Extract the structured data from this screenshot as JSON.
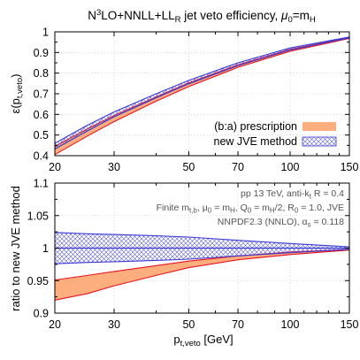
{
  "chart_data": {
    "type": "area",
    "title": {
      "pre": "N",
      "sup": "3",
      "mid": "LO+NNLL+LL",
      "sub": "R",
      "post": " jet veto efficiency, ",
      "mu": "μ",
      "mu_sub": "0",
      "eq": "=m",
      "eq_sub": "H"
    },
    "xlabel": {
      "base": "p",
      "sub": "t,veto",
      "unit": " [GeV]"
    },
    "x_scale": "log",
    "xlim": [
      20,
      150
    ],
    "x_ticks": [
      20,
      30,
      50,
      70,
      100,
      150
    ],
    "top_panel": {
      "ylabel": {
        "base": "ε(p",
        "sub": "t,veto",
        "close": ")"
      },
      "ylim": [
        0.4,
        1.0
      ],
      "y_ticks": [
        "0.4",
        "0.5",
        "0.6",
        "0.7",
        "0.8",
        "0.9",
        "1"
      ],
      "series": [
        {
          "name": "(b:a) prescription",
          "style": "solid-orange",
          "x": [
            20,
            25,
            30,
            40,
            50,
            70,
            100,
            150
          ],
          "upper": [
            0.445,
            0.53,
            0.595,
            0.685,
            0.753,
            0.84,
            0.915,
            0.972
          ],
          "lower": [
            0.405,
            0.495,
            0.565,
            0.664,
            0.735,
            0.828,
            0.906,
            0.968
          ]
        },
        {
          "name": "new JVE method",
          "style": "hatched-blue",
          "x": [
            20,
            25,
            30,
            40,
            50,
            70,
            100,
            150
          ],
          "upper": [
            0.46,
            0.548,
            0.612,
            0.7,
            0.765,
            0.85,
            0.922,
            0.975
          ],
          "lower": [
            0.432,
            0.52,
            0.588,
            0.68,
            0.748,
            0.836,
            0.912,
            0.971
          ]
        }
      ],
      "legend_position": "lower-right"
    },
    "bottom_panel": {
      "ylabel": "ratio to new JVE method",
      "ylim": [
        0.9,
        1.1
      ],
      "y_ticks": [
        "0.9",
        "0.95",
        "1",
        "1.05",
        "1.1"
      ],
      "series": [
        {
          "name": "(b:a) prescription",
          "style": "solid-orange",
          "x": [
            20,
            25,
            30,
            40,
            50,
            70,
            100,
            150
          ],
          "upper": [
            0.951,
            0.958,
            0.964,
            0.973,
            0.98,
            0.988,
            0.994,
            0.998
          ],
          "lower": [
            0.92,
            0.93,
            0.942,
            0.958,
            0.97,
            0.982,
            0.99,
            0.997
          ]
        },
        {
          "name": "new JVE method",
          "style": "hatched-blue",
          "x": [
            20,
            25,
            30,
            40,
            50,
            70,
            100,
            150
          ],
          "upper": [
            1.024,
            1.022,
            1.021,
            1.019,
            1.017,
            1.012,
            1.007,
            1.002
          ],
          "lower": [
            0.976,
            0.978,
            0.979,
            0.981,
            0.983,
            0.988,
            0.993,
            0.998
          ]
        }
      ],
      "reference_line": 1.0
    },
    "annotations": [
      {
        "parts": [
          {
            "t": "pp 13 TeV, anti-k"
          },
          {
            "t": "t",
            "sub": true
          },
          {
            "t": " R = 0.4"
          }
        ]
      },
      {
        "parts": [
          {
            "t": "Finite m"
          },
          {
            "t": "t,b",
            "sub": true
          },
          {
            "t": ", μ"
          },
          {
            "t": "0",
            "sub": true
          },
          {
            "t": " = m"
          },
          {
            "t": "H",
            "sub": true
          },
          {
            "t": ", Q"
          },
          {
            "t": "0",
            "sub": true
          },
          {
            "t": " = m"
          },
          {
            "t": "H",
            "sub": true
          },
          {
            "t": "/2, R"
          },
          {
            "t": "0",
            "sub": true
          },
          {
            "t": " = 1.0, JVE"
          }
        ]
      },
      {
        "parts": [
          {
            "t": "NNPDF2.3 (NNLO), α"
          },
          {
            "t": "s",
            "sub": true
          },
          {
            "t": " = 0.118"
          }
        ]
      }
    ],
    "colors": {
      "orange_fill": "#fdae7e",
      "red_line": "#e8141e",
      "blue_line": "#3a3ad6",
      "blue_hatch": "#5b5bd9"
    }
  }
}
